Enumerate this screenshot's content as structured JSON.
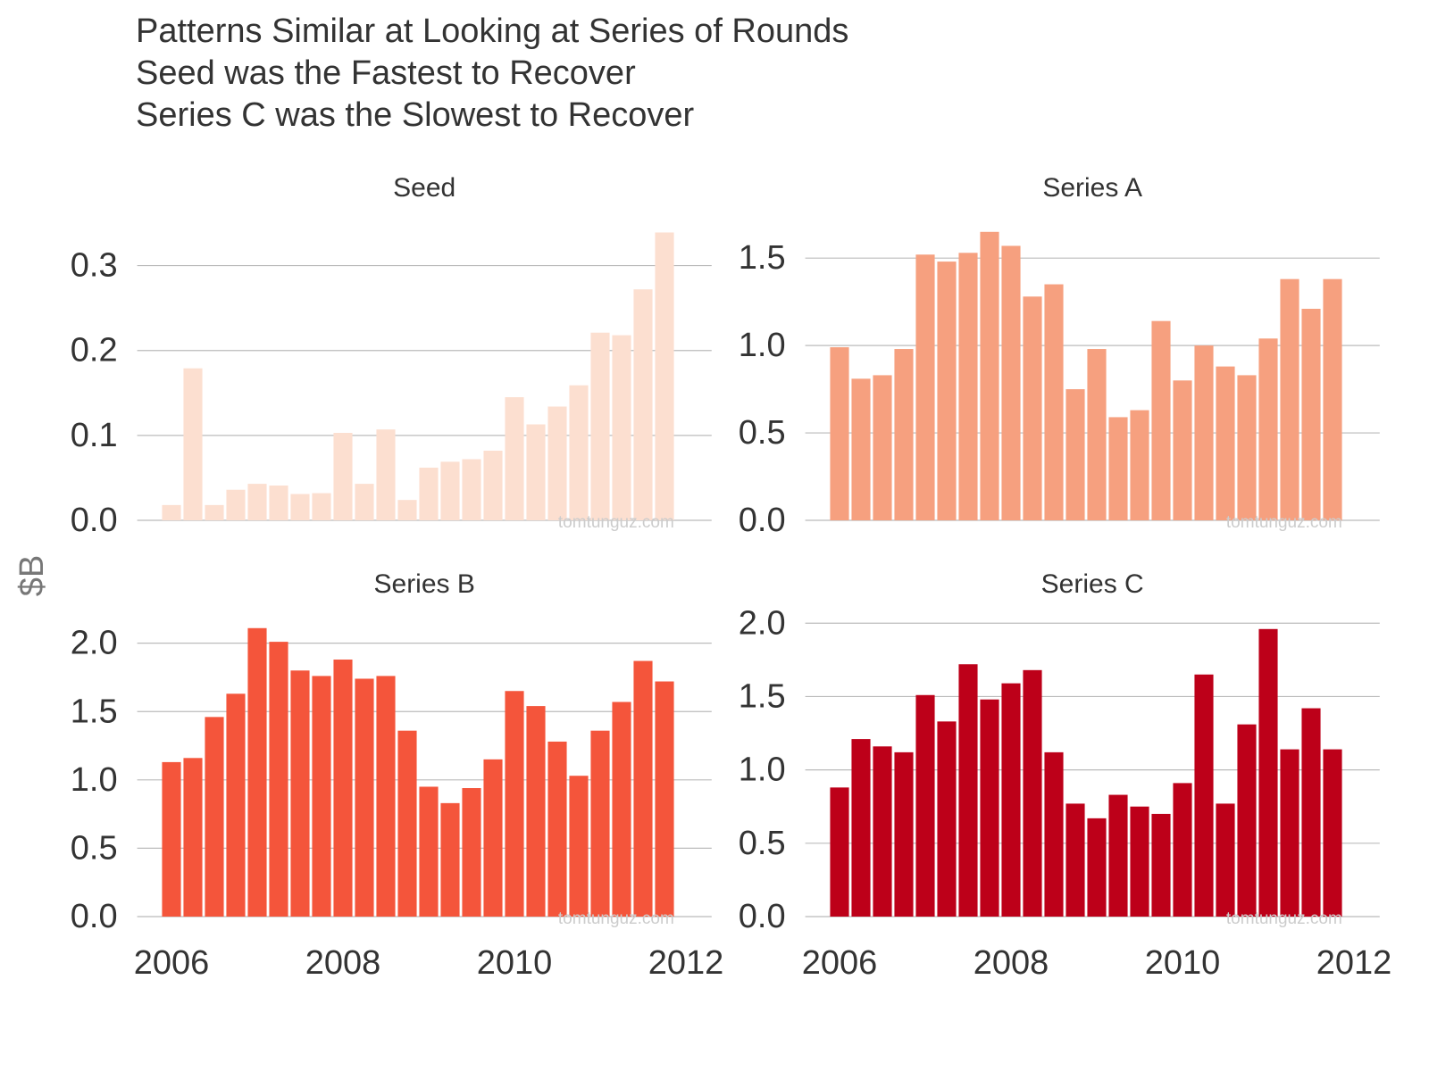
{
  "title": [
    "Patterns Similar at Looking at Series of Rounds",
    "Seed was the Fastest to Recover",
    "Series C was the Slowest to Recover"
  ],
  "y_label": "$B",
  "chart_data": [
    {
      "type": "bar",
      "title": "Seed",
      "color": "#fcdfd0",
      "grid": true,
      "watermark": "tomtunguz.com",
      "x": [
        2006,
        2006.25,
        2006.5,
        2006.75,
        2007,
        2007.25,
        2007.5,
        2007.75,
        2008,
        2008.25,
        2008.5,
        2008.75,
        2009,
        2009.25,
        2009.5,
        2009.75,
        2010,
        2010.25,
        2010.5,
        2010.75,
        2011,
        2011.25,
        2011.5,
        2011.75
      ],
      "values": [
        0.018,
        0.179,
        0.018,
        0.036,
        0.043,
        0.041,
        0.031,
        0.032,
        0.103,
        0.043,
        0.107,
        0.024,
        0.062,
        0.069,
        0.072,
        0.082,
        0.145,
        0.113,
        0.134,
        0.159,
        0.221,
        0.218,
        0.272,
        0.339
      ],
      "xlim": [
        2005.6,
        2012.3
      ],
      "ylim": [
        0,
        0.35
      ],
      "yticks": [
        {
          "value": 0,
          "label": "0.0"
        },
        0.1,
        0.2,
        0.3
      ]
    },
    {
      "type": "bar",
      "title": "Series A",
      "color": "#f6a07f",
      "grid": true,
      "watermark": "tomtunguz.com",
      "x": [
        2006,
        2006.25,
        2006.5,
        2006.75,
        2007,
        2007.25,
        2007.5,
        2007.75,
        2008,
        2008.25,
        2008.5,
        2008.75,
        2009,
        2009.25,
        2009.5,
        2009.75,
        2010,
        2010.25,
        2010.5,
        2010.75,
        2011,
        2011.25,
        2011.5,
        2011.75
      ],
      "values": [
        0.99,
        0.81,
        0.83,
        0.98,
        1.52,
        1.48,
        1.53,
        1.65,
        1.57,
        1.28,
        1.35,
        0.75,
        0.98,
        0.59,
        0.63,
        1.14,
        0.8,
        1.0,
        0.88,
        0.83,
        1.04,
        1.38,
        1.21,
        1.38
      ],
      "xlim": [
        2005.6,
        2012.3
      ],
      "ylim": [
        0,
        1.7
      ],
      "yticks": [
        {
          "value": 0,
          "label": "0.0"
        },
        0.5,
        {
          "value": 1,
          "label": "1.0"
        },
        1.5
      ]
    },
    {
      "type": "bar",
      "title": "Series B",
      "color": "#f4553b",
      "grid": true,
      "watermark": "tomtunguz.com",
      "x": [
        2006,
        2006.25,
        2006.5,
        2006.75,
        2007,
        2007.25,
        2007.5,
        2007.75,
        2008,
        2008.25,
        2008.5,
        2008.75,
        2009,
        2009.25,
        2009.5,
        2009.75,
        2010,
        2010.25,
        2010.5,
        2010.75,
        2011,
        2011.25,
        2011.5,
        2011.75
      ],
      "values": [
        1.13,
        1.16,
        1.46,
        1.63,
        2.11,
        2.01,
        1.8,
        1.76,
        1.88,
        1.74,
        1.76,
        1.36,
        0.95,
        0.83,
        0.94,
        1.15,
        1.65,
        1.54,
        1.28,
        1.03,
        1.36,
        1.57,
        1.87,
        1.72
      ],
      "xlim": [
        2005.6,
        2012.3
      ],
      "ylim": [
        0,
        2.2
      ],
      "yticks": [
        {
          "value": 0,
          "label": "0.0"
        },
        0.5,
        {
          "value": 1,
          "label": "1.0"
        },
        1.5,
        {
          "value": 2,
          "label": "2.0"
        }
      ],
      "xticks": [
        2006,
        2008,
        2010,
        2012
      ]
    },
    {
      "type": "bar",
      "title": "Series C",
      "color": "#bd0019",
      "grid": true,
      "watermark": "tomtunguz.com",
      "x": [
        2006,
        2006.25,
        2006.5,
        2006.75,
        2007,
        2007.25,
        2007.5,
        2007.75,
        2008,
        2008.25,
        2008.5,
        2008.75,
        2009,
        2009.25,
        2009.5,
        2009.75,
        2010,
        2010.25,
        2010.5,
        2010.75,
        2011,
        2011.25,
        2011.5,
        2011.75
      ],
      "values": [
        0.88,
        1.21,
        1.16,
        1.12,
        1.51,
        1.33,
        1.72,
        1.48,
        1.59,
        1.68,
        1.12,
        0.77,
        0.67,
        0.83,
        0.75,
        0.7,
        0.91,
        1.65,
        0.77,
        1.31,
        1.96,
        1.14,
        1.42,
        1.14
      ],
      "xlim": [
        2005.6,
        2012.3
      ],
      "ylim": [
        0,
        2.05
      ],
      "yticks": [
        {
          "value": 0,
          "label": "0.0"
        },
        0.5,
        {
          "value": 1,
          "label": "1.0"
        },
        1.5,
        {
          "value": 2,
          "label": "2.0"
        }
      ],
      "xticks": [
        2006,
        2008,
        2010,
        2012
      ]
    }
  ]
}
